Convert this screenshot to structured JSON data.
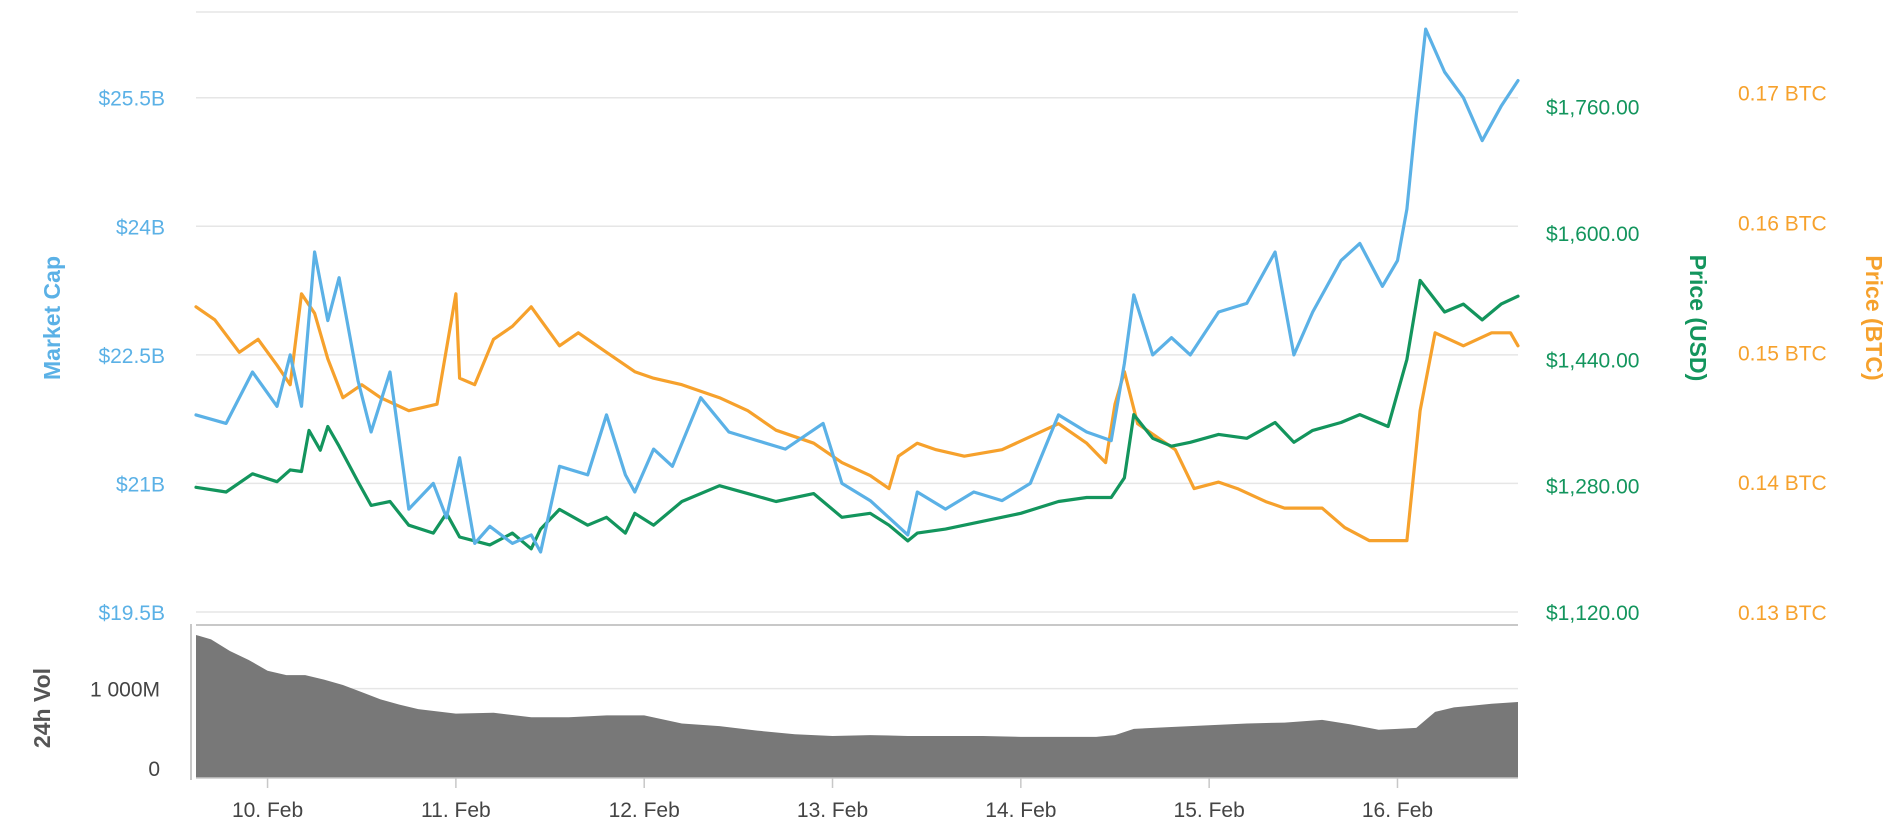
{
  "chart_data": {
    "type": "line",
    "title": "",
    "colors": {
      "market_cap": "#5bb1e6",
      "price_usd": "#13955d",
      "price_btc": "#f6a12c",
      "volume": "#787878",
      "grid": "#e6e6e6"
    },
    "grid": true,
    "legend": "none",
    "x": {
      "tick_labels": [
        "10. Feb",
        "11. Feb",
        "12. Feb",
        "13. Feb",
        "14. Feb",
        "15. Feb",
        "16. Feb"
      ],
      "range": [
        9.62,
        16.64
      ]
    },
    "axes": {
      "market_cap": {
        "label": "Market Cap",
        "ylim": [
          19.5,
          26.5
        ],
        "tick_values": [
          19.5,
          21,
          22.5,
          24,
          25.5
        ],
        "tick_labels": [
          "$19.5B",
          "$21B",
          "$22.5B",
          "$24B",
          "$25.5B"
        ]
      },
      "price_usd": {
        "label": "Price (USD)",
        "ylim": [
          1120,
          1880
        ],
        "tick_values": [
          1120,
          1280,
          1440,
          1600,
          1760
        ],
        "tick_labels": [
          "$1,120.00",
          "$1,280.00",
          "$1,440.00",
          "$1,600.00",
          "$1,760.00"
        ]
      },
      "price_btc": {
        "label": "Price (BTC)",
        "ylim": [
          0.13,
          0.1762
        ],
        "tick_values": [
          0.13,
          0.14,
          0.15,
          0.16,
          0.17
        ],
        "tick_labels": [
          "0.13 BTC",
          "0.14 BTC",
          "0.15 BTC",
          "0.16 BTC",
          "0.17 BTC"
        ]
      },
      "volume_24h": {
        "label": "24h Vol",
        "ylim": [
          0,
          1700
        ],
        "tick_values": [
          0,
          1000
        ],
        "tick_labels": [
          "0",
          "1 000M"
        ]
      }
    },
    "series": [
      {
        "name": "Market Cap",
        "axis": "market_cap",
        "unit": "billion USD",
        "x": [
          9.62,
          9.78,
          9.92,
          10.05,
          10.12,
          10.18,
          10.25,
          10.32,
          10.38,
          10.48,
          10.55,
          10.65,
          10.75,
          10.88,
          10.95,
          11.02,
          11.1,
          11.18,
          11.3,
          11.4,
          11.45,
          11.55,
          11.7,
          11.8,
          11.9,
          11.95,
          12.05,
          12.15,
          12.3,
          12.45,
          12.6,
          12.75,
          12.95,
          13.05,
          13.2,
          13.3,
          13.4,
          13.45,
          13.6,
          13.75,
          13.9,
          14.05,
          14.2,
          14.35,
          14.48,
          14.55,
          14.6,
          14.7,
          14.8,
          14.9,
          15.05,
          15.2,
          15.35,
          15.45,
          15.55,
          15.7,
          15.8,
          15.92,
          16.0,
          16.05,
          16.1,
          16.15,
          16.25,
          16.35,
          16.45,
          16.55,
          16.64
        ],
        "values": [
          21.8,
          21.7,
          22.3,
          21.9,
          22.5,
          21.9,
          23.7,
          22.9,
          23.4,
          22.2,
          21.6,
          22.3,
          20.7,
          21.0,
          20.6,
          21.3,
          20.3,
          20.5,
          20.3,
          20.4,
          20.2,
          21.2,
          21.1,
          21.8,
          21.1,
          20.9,
          21.4,
          21.2,
          22.0,
          21.6,
          21.5,
          21.4,
          21.7,
          21.0,
          20.8,
          20.6,
          20.4,
          20.9,
          20.7,
          20.9,
          20.8,
          21.0,
          21.8,
          21.6,
          21.5,
          22.4,
          23.2,
          22.5,
          22.7,
          22.5,
          23.0,
          23.1,
          23.7,
          22.5,
          23.0,
          23.6,
          23.8,
          23.3,
          23.6,
          24.2,
          25.3,
          26.3,
          25.8,
          25.5,
          25.0,
          25.4,
          25.7
        ]
      },
      {
        "name": "Price (USD)",
        "axis": "price_usd",
        "unit": "USD",
        "x": [
          9.62,
          9.78,
          9.92,
          10.05,
          10.12,
          10.18,
          10.22,
          10.28,
          10.32,
          10.38,
          10.48,
          10.55,
          10.65,
          10.75,
          10.88,
          10.95,
          11.02,
          11.1,
          11.18,
          11.3,
          11.4,
          11.45,
          11.55,
          11.7,
          11.8,
          11.9,
          11.95,
          12.05,
          12.2,
          12.4,
          12.55,
          12.7,
          12.9,
          13.05,
          13.2,
          13.3,
          13.4,
          13.45,
          13.6,
          13.8,
          14.0,
          14.2,
          14.35,
          14.48,
          14.55,
          14.6,
          14.7,
          14.8,
          14.9,
          15.05,
          15.2,
          15.35,
          15.45,
          15.55,
          15.7,
          15.8,
          15.95,
          16.05,
          16.12,
          16.25,
          16.35,
          16.45,
          16.55,
          16.64
        ],
        "values": [
          1278,
          1272,
          1295,
          1285,
          1300,
          1298,
          1350,
          1325,
          1355,
          1330,
          1285,
          1255,
          1260,
          1230,
          1220,
          1245,
          1215,
          1210,
          1205,
          1220,
          1200,
          1225,
          1250,
          1230,
          1240,
          1220,
          1245,
          1230,
          1260,
          1280,
          1270,
          1260,
          1270,
          1240,
          1245,
          1230,
          1210,
          1220,
          1225,
          1235,
          1245,
          1260,
          1265,
          1265,
          1290,
          1370,
          1340,
          1330,
          1335,
          1345,
          1340,
          1360,
          1335,
          1350,
          1360,
          1370,
          1355,
          1440,
          1540,
          1500,
          1510,
          1490,
          1510,
          1520
        ]
      },
      {
        "name": "Price (BTC)",
        "axis": "price_btc",
        "unit": "BTC",
        "x": [
          9.62,
          9.72,
          9.85,
          9.95,
          10.05,
          10.12,
          10.18,
          10.25,
          10.32,
          10.4,
          10.5,
          10.6,
          10.75,
          10.9,
          11.0,
          11.02,
          11.1,
          11.2,
          11.3,
          11.4,
          11.45,
          11.55,
          11.65,
          11.8,
          11.95,
          12.05,
          12.2,
          12.4,
          12.55,
          12.7,
          12.9,
          13.05,
          13.2,
          13.3,
          13.35,
          13.45,
          13.55,
          13.7,
          13.9,
          14.05,
          14.2,
          14.35,
          14.45,
          14.5,
          14.55,
          14.62,
          14.72,
          14.82,
          14.92,
          15.05,
          15.15,
          15.3,
          15.4,
          15.5,
          15.6,
          15.72,
          15.85,
          15.98,
          16.05,
          16.12,
          16.2,
          16.35,
          16.5,
          16.6,
          16.64
        ],
        "values": [
          0.1535,
          0.1525,
          0.15,
          0.151,
          0.149,
          0.1475,
          0.1545,
          0.153,
          0.1495,
          0.1465,
          0.1475,
          0.1465,
          0.1455,
          0.146,
          0.1545,
          0.148,
          0.1475,
          0.151,
          0.152,
          0.1535,
          0.1525,
          0.1505,
          0.1515,
          0.15,
          0.1485,
          0.148,
          0.1475,
          0.1465,
          0.1455,
          0.144,
          0.143,
          0.1415,
          0.1405,
          0.1395,
          0.142,
          0.143,
          0.1425,
          0.142,
          0.1425,
          0.1435,
          0.1445,
          0.143,
          0.1415,
          0.146,
          0.1485,
          0.1445,
          0.1435,
          0.1425,
          0.1395,
          0.14,
          0.1395,
          0.1385,
          0.138,
          0.138,
          0.138,
          0.1365,
          0.1355,
          0.1355,
          0.1355,
          0.1455,
          0.1515,
          0.1505,
          0.1515,
          0.1515,
          0.1505
        ]
      },
      {
        "name": "24h Vol",
        "axis": "volume_24h",
        "unit": "million USD",
        "x": [
          9.62,
          9.7,
          9.8,
          9.9,
          10.0,
          10.1,
          10.2,
          10.3,
          10.4,
          10.5,
          10.6,
          10.7,
          10.8,
          11.0,
          11.2,
          11.4,
          11.6,
          11.8,
          12.0,
          12.2,
          12.4,
          12.6,
          12.8,
          13.0,
          13.2,
          13.4,
          13.6,
          13.8,
          14.0,
          14.2,
          14.4,
          14.5,
          14.6,
          14.8,
          15.0,
          15.2,
          15.4,
          15.6,
          15.75,
          15.9,
          16.0,
          16.1,
          16.2,
          16.3,
          16.4,
          16.5,
          16.64
        ],
        "values": [
          1600,
          1550,
          1420,
          1320,
          1200,
          1150,
          1150,
          1100,
          1040,
          960,
          880,
          820,
          770,
          720,
          730,
          680,
          680,
          700,
          700,
          610,
          580,
          530,
          490,
          470,
          480,
          470,
          470,
          470,
          460,
          460,
          460,
          480,
          550,
          570,
          590,
          610,
          620,
          650,
          600,
          540,
          550,
          560,
          740,
          790,
          810,
          830,
          850
        ]
      }
    ]
  }
}
